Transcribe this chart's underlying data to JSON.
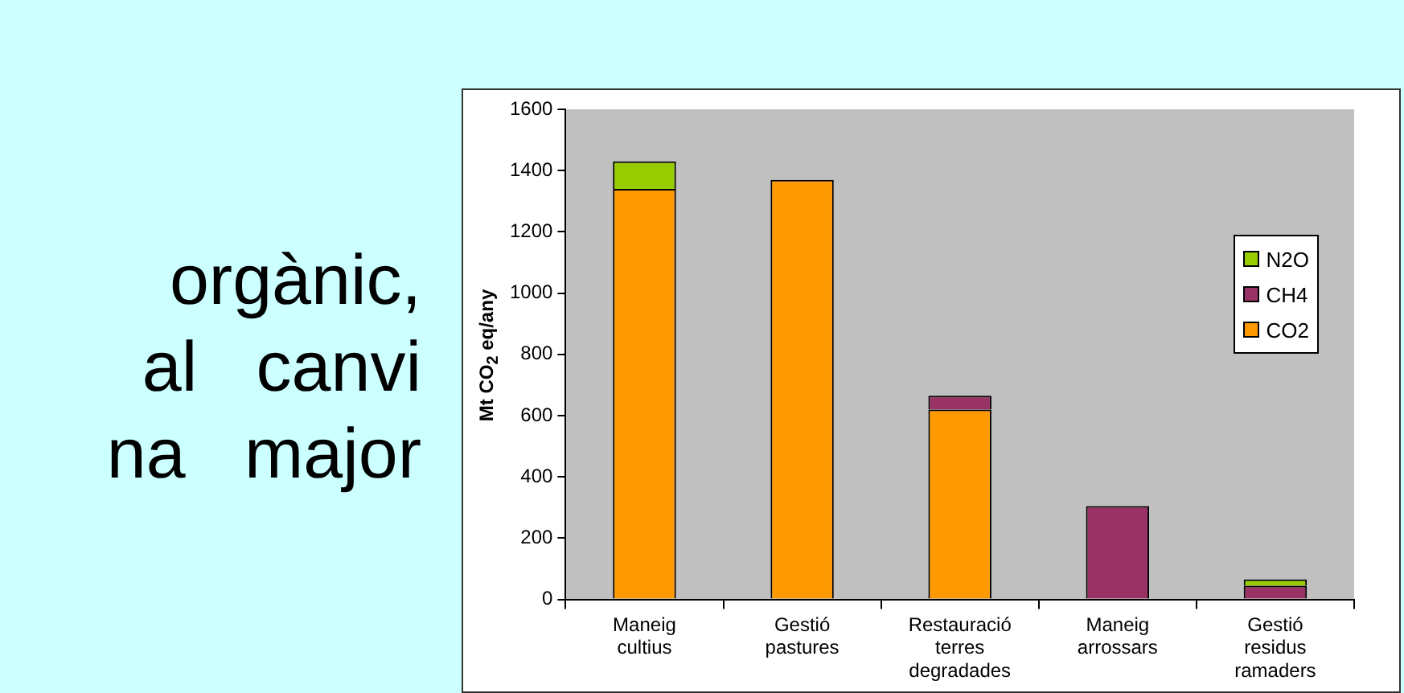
{
  "chart_data": {
    "type": "bar",
    "stacked": true,
    "ylabel": "Mt CO$_{2}$ eq/any",
    "categories": [
      "Maneig cultius",
      "Gestió pastures",
      "Restauració terres degradades",
      "Maneig arrossars",
      "Gestió residus ramaders"
    ],
    "series": [
      {
        "name": "CO2",
        "color": "#ff9900",
        "values": [
          1340,
          1370,
          620,
          null,
          null
        ]
      },
      {
        "name": "CH4",
        "color": "#993366",
        "values": [
          null,
          null,
          45,
          305,
          45
        ]
      },
      {
        "name": "N2O",
        "color": "#99cc00",
        "values": [
          90,
          null,
          null,
          null,
          20
        ]
      }
    ],
    "ylim": [
      0,
      1600
    ],
    "yticks": [
      0,
      200,
      400,
      600,
      800,
      1000,
      1200,
      1400,
      1600
    ],
    "grid": false,
    "legend": "right",
    "annotations": [
      "orgànic,",
      "al   canvi",
      "na   major"
    ]
  }
}
